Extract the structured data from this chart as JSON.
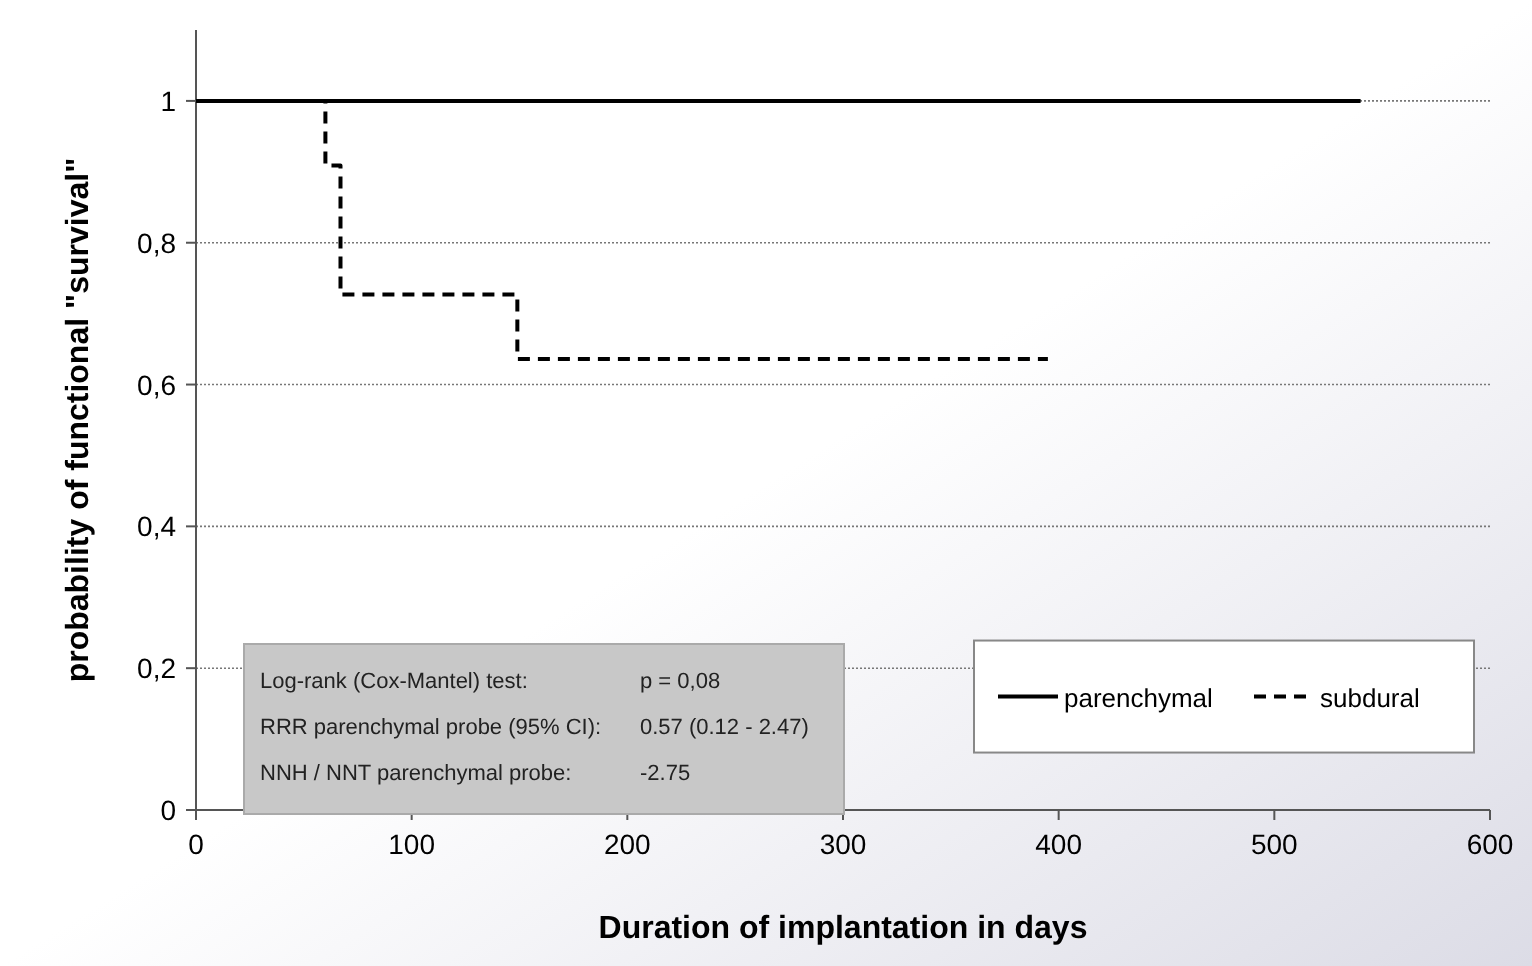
{
  "chart_data": {
    "type": "step",
    "xlabel": "Duration of implantation in days",
    "ylabel": "probability of functional \"survival\"",
    "xlim": [
      0,
      600
    ],
    "xticks": [
      0,
      100,
      200,
      300,
      400,
      500,
      600
    ],
    "ylim": [
      0,
      1.1
    ],
    "yticks": [
      {
        "value": 0,
        "label": "0"
      },
      {
        "value": 0.2,
        "label": "0,2"
      },
      {
        "value": 0.4,
        "label": "0,4"
      },
      {
        "value": 0.6,
        "label": "0,6"
      },
      {
        "value": 0.8,
        "label": "0,8"
      },
      {
        "value": 1,
        "label": "1"
      }
    ],
    "grid": "y",
    "legend": "bottom right",
    "series": [
      {
        "name": "parenchymal",
        "color": "#000000",
        "line_style": "solid",
        "x": [
          0,
          540
        ],
        "values": [
          1,
          1
        ]
      },
      {
        "name": "subdural",
        "color": "#000000",
        "line_style": "dashed",
        "x": [
          0,
          60,
          67,
          149,
          395
        ],
        "values": [
          1,
          0.909,
          0.727,
          0.636,
          0.636
        ]
      }
    ],
    "annotations": [
      "Log-rank (Cox-Mantel) test:",
      "p = 0,08",
      "RRR parenchymal probe (95% CI):",
      "0.57 (0.12 - 2.47)",
      "NNH / NNT parenchymal probe:",
      "-2.75"
    ]
  }
}
